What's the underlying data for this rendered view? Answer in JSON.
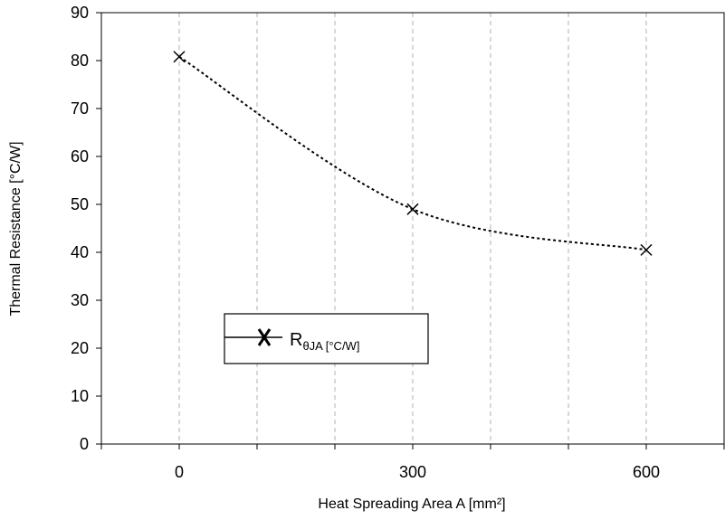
{
  "chart_data": {
    "type": "line",
    "xlabel": "Heat Spreading Area A [mm²]",
    "ylabel": "Thermal Resistance [°C/W]",
    "xlim": [
      -100,
      700
    ],
    "ylim": [
      0,
      90
    ],
    "x_ticks": [
      0,
      300,
      600
    ],
    "x_tick_labels": [
      "0",
      "300",
      "600"
    ],
    "x_minor_step": 100,
    "y_ticks": [
      0,
      10,
      20,
      30,
      40,
      50,
      60,
      70,
      80,
      90
    ],
    "y_tick_labels": [
      "0",
      "10",
      "20",
      "30",
      "40",
      "50",
      "60",
      "70",
      "80",
      "90"
    ],
    "grid": "vertical dashed",
    "legend_placement": "lower-left",
    "series": [
      {
        "name": "RθJA [°C/W]",
        "legend_main": "R",
        "legend_sub": "θJA [°C/W]",
        "marker": "x",
        "line_style": "dotted smoothed",
        "x": [
          0,
          300,
          600
        ],
        "values": [
          80.8,
          49.0,
          40.5
        ]
      }
    ],
    "colors": {
      "line": "#000000",
      "grid": "#b0b0b0",
      "frame": "#000000"
    }
  }
}
